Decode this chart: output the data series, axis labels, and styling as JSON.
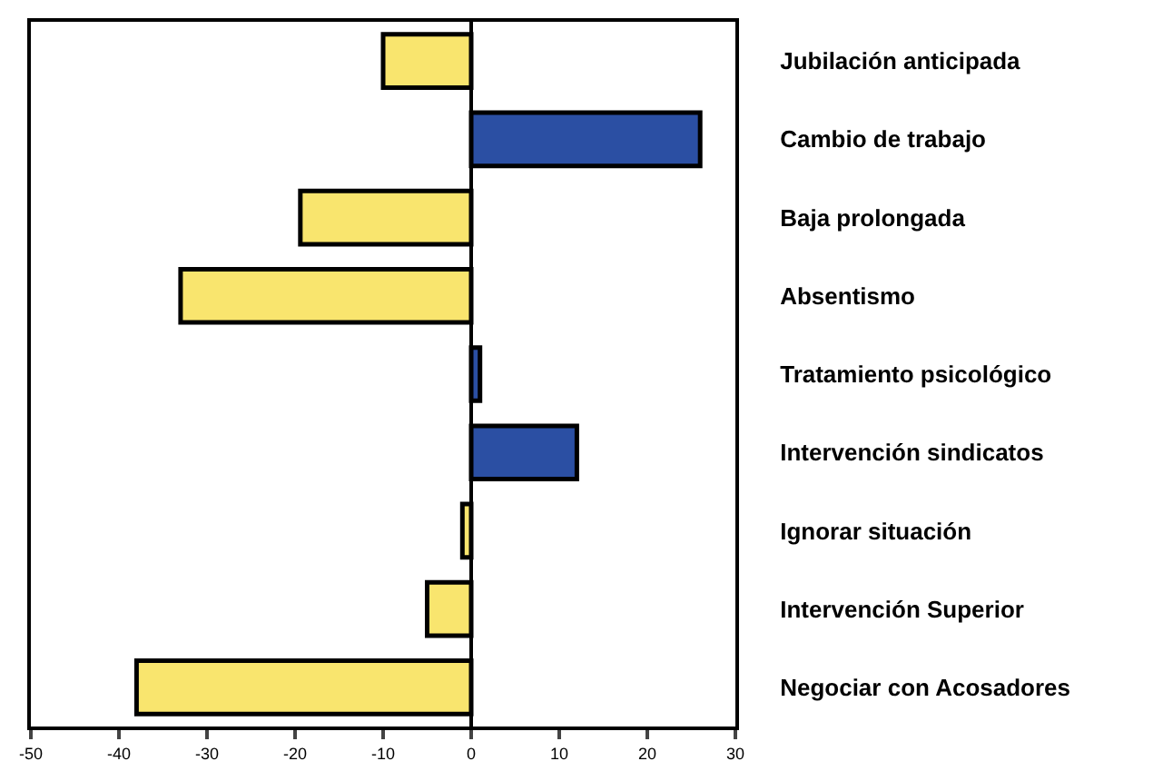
{
  "chart_data": {
    "type": "bar",
    "orientation": "horizontal",
    "categories": [
      "Jubilación anticipada",
      "Cambio de trabajo",
      "Baja prolongada",
      "Absentismo",
      "Tratamiento psicológico",
      "Intervención sindicatos",
      "Ignorar situación",
      "Intervención Superior",
      "Negociar con Acosadores"
    ],
    "values": [
      -10,
      26,
      -19.4,
      -33,
      1,
      12,
      -1,
      -5,
      -38
    ],
    "colors": [
      "#f9e56e",
      "#2b4fa3",
      "#f9e56e",
      "#f9e56e",
      "#2b4fa3",
      "#2b4fa3",
      "#f9e56e",
      "#f9e56e",
      "#f9e56e"
    ],
    "xlim": [
      -50,
      30
    ],
    "xticks": [
      -50,
      -40,
      -30,
      -20,
      -10,
      0,
      10,
      20,
      30
    ],
    "ref_lines": [
      {
        "axis": "x",
        "value": 0,
        "color": "#000000"
      }
    ]
  }
}
